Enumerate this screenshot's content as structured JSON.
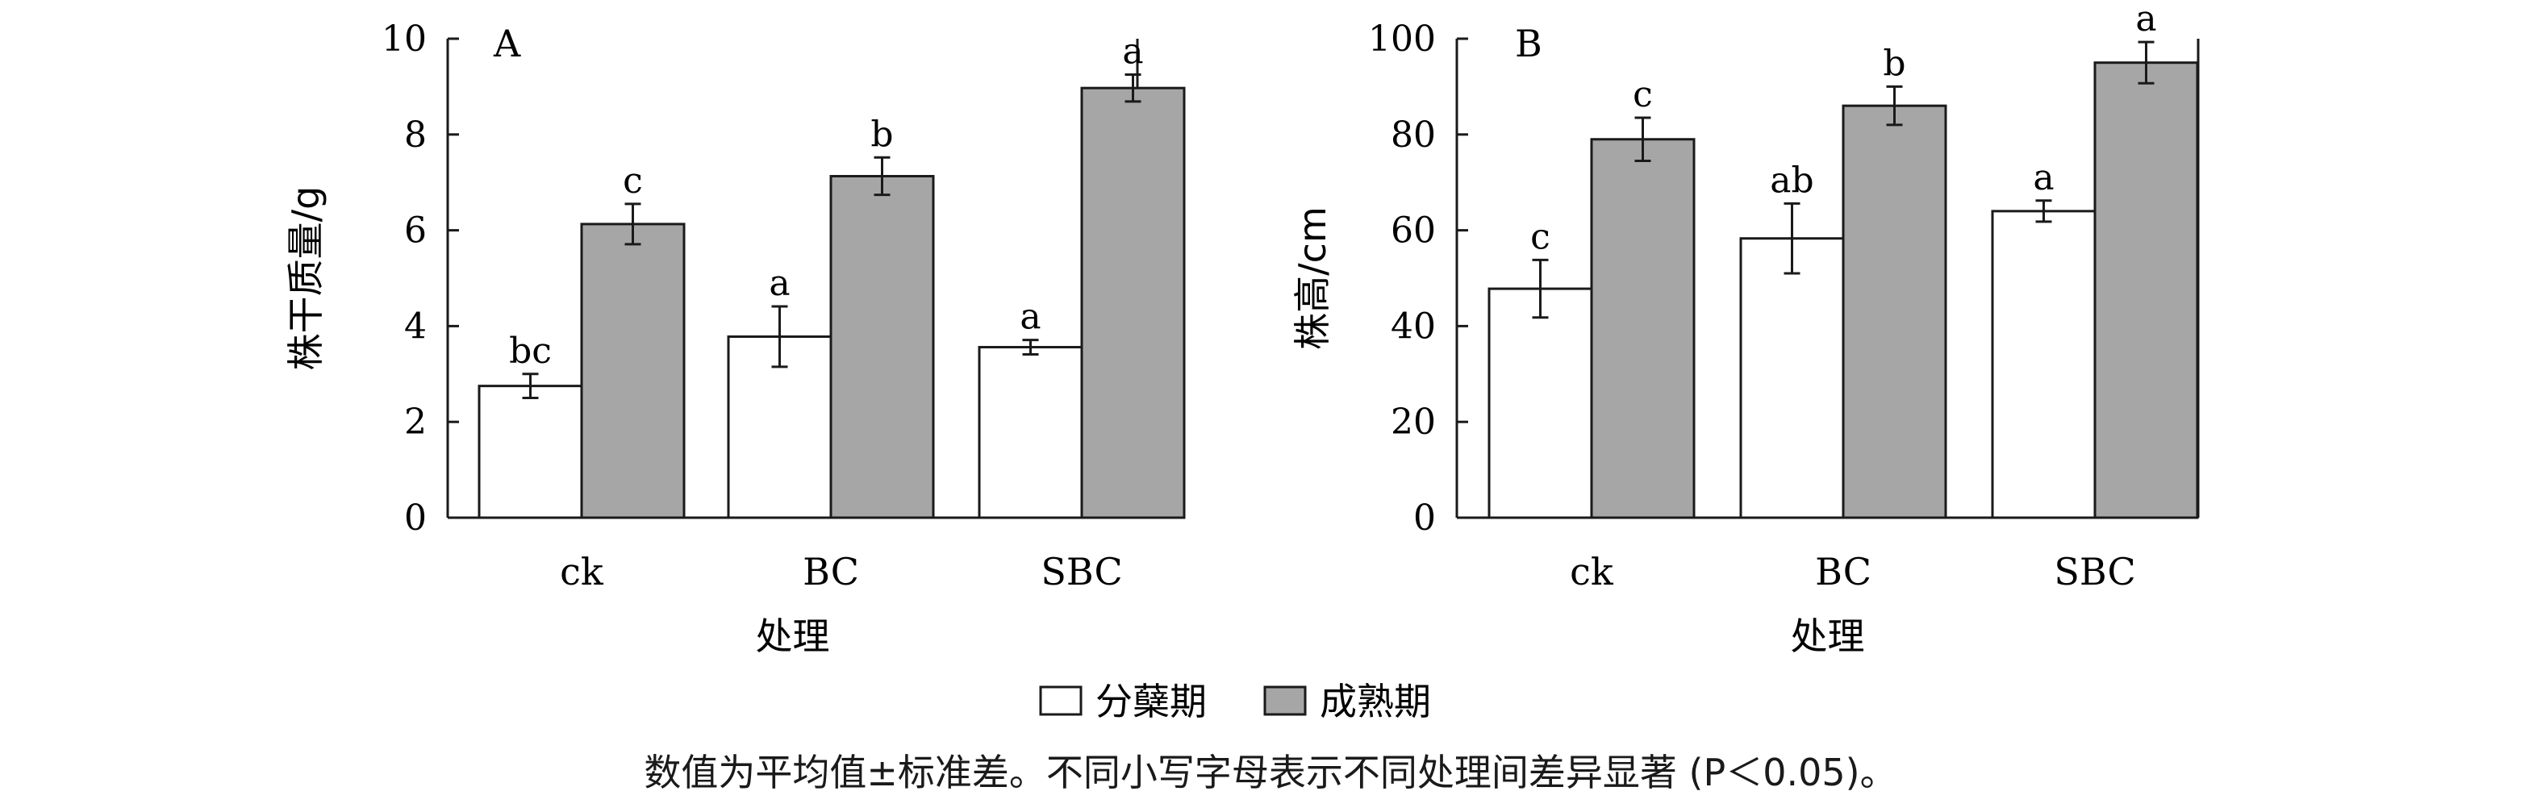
{
  "legend": {
    "items": [
      {
        "label": "分蘖期",
        "color": "#ffffff"
      },
      {
        "label": "成熟期",
        "color": "#a6a6a6"
      }
    ]
  },
  "note": "数值为平均值±标准差。不同小写字母表示不同处理间差异显著 (P＜0.05)。",
  "chart_data": [
    {
      "type": "bar",
      "panel_label": "A",
      "categories": [
        "ck",
        "BC",
        "SBC"
      ],
      "xlabel": "处理",
      "ylabel": "株干质量/g",
      "ylim": [
        0,
        10
      ],
      "yticks": [
        "0",
        "2",
        "4",
        "6",
        "8",
        "10"
      ],
      "series": [
        {
          "name": "分蘖期",
          "values": [
            2.75,
            3.78,
            3.56
          ],
          "errors": [
            0.25,
            0.63,
            0.15
          ],
          "labels": [
            "bc",
            "a",
            "a"
          ]
        },
        {
          "name": "成熟期",
          "values": [
            6.13,
            7.13,
            8.97
          ],
          "errors": [
            0.42,
            0.39,
            0.28
          ],
          "labels": [
            "c",
            "b",
            "a"
          ]
        }
      ]
    },
    {
      "type": "bar",
      "panel_label": "B",
      "categories": [
        "ck",
        "BC",
        "SBC"
      ],
      "xlabel": "处理",
      "ylabel": "株高/cm",
      "ylim": [
        0,
        100
      ],
      "yticks": [
        "0",
        "20",
        "40",
        "60",
        "80",
        "100"
      ],
      "series": [
        {
          "name": "分蘖期",
          "values": [
            47.8,
            58.3,
            64.0
          ],
          "errors": [
            6.0,
            7.3,
            2.2
          ],
          "labels": [
            "c",
            "ab",
            "a"
          ]
        },
        {
          "name": "成熟期",
          "values": [
            79.0,
            86.0,
            95.0
          ],
          "errors": [
            4.5,
            4.0,
            4.3
          ],
          "labels": [
            "c",
            "b",
            "a"
          ]
        }
      ]
    }
  ]
}
